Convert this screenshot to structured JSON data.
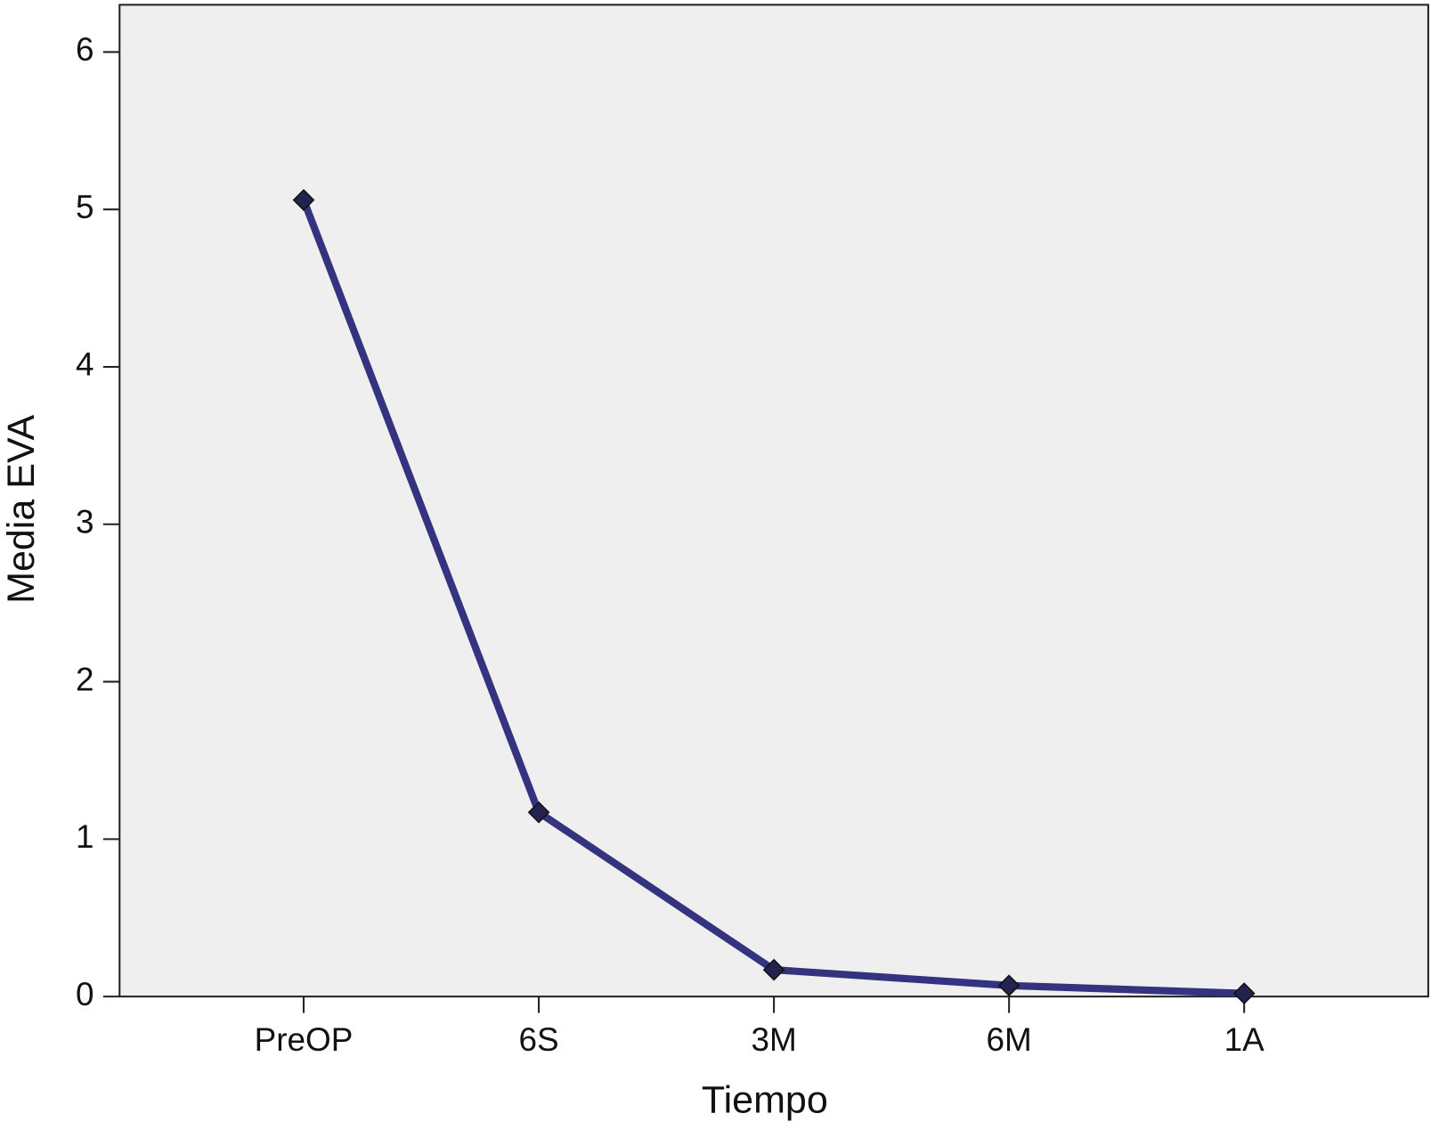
{
  "chart_data": {
    "type": "line",
    "x_label": "Tiempo",
    "y_label": "Media EVA",
    "categories": [
      "PreOP",
      "6S",
      "3M",
      "6M",
      "1A"
    ],
    "series": [
      {
        "name": "Media EVA",
        "color": "#33337f",
        "values": [
          5.06,
          1.17,
          0.17,
          0.07,
          0.02
        ]
      }
    ],
    "ylim": [
      0,
      6.3
    ],
    "yticks": [
      0,
      1,
      2,
      3,
      4,
      5,
      6
    ],
    "grid": false,
    "background": "#efefef"
  }
}
